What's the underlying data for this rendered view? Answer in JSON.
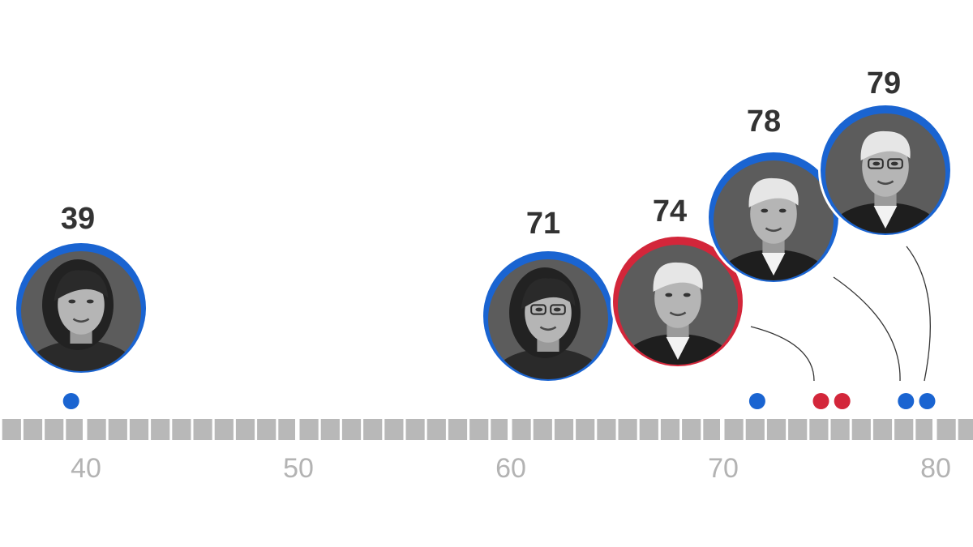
{
  "chart_data": {
    "type": "scatter",
    "title": "",
    "xlabel": "",
    "ylabel": "",
    "xlim": [
      35.6,
      81.8
    ],
    "x_ticks": [
      40,
      50,
      60,
      70,
      80
    ],
    "tick_labels": [
      "40",
      "50",
      "60",
      "70",
      "80"
    ],
    "unit_segments_per_year": 1,
    "colors": {
      "democrat": "#1a64d1",
      "republican": "#d3263a",
      "axis_segment": "#b8b8b8",
      "tick_text": "#b3b3b3",
      "label_text": "#333333"
    },
    "dots": [
      {
        "x": 39.3,
        "party": "democrat"
      },
      {
        "x": 71.6,
        "party": "democrat"
      },
      {
        "x": 74.6,
        "party": "republican"
      },
      {
        "x": 75.6,
        "party": "republican"
      },
      {
        "x": 78.6,
        "party": "democrat"
      },
      {
        "x": 79.6,
        "party": "democrat"
      }
    ],
    "highlights": [
      {
        "age_label": "39",
        "party": "democrat",
        "dot_index": 0,
        "portrait": "woman-portrait",
        "connector": false
      },
      {
        "age_label": "71",
        "party": "democrat",
        "dot_index": 1,
        "portrait": "woman-portrait-glasses",
        "connector": false
      },
      {
        "age_label": "74",
        "party": "republican",
        "dot_index": 2,
        "portrait": "man-portrait",
        "connector": true
      },
      {
        "age_label": "78",
        "party": "democrat",
        "dot_index": 4,
        "portrait": "man-portrait",
        "connector": true
      },
      {
        "age_label": "79",
        "party": "democrat",
        "dot_index": 5,
        "portrait": "man-portrait-glasses",
        "connector": true
      }
    ]
  }
}
